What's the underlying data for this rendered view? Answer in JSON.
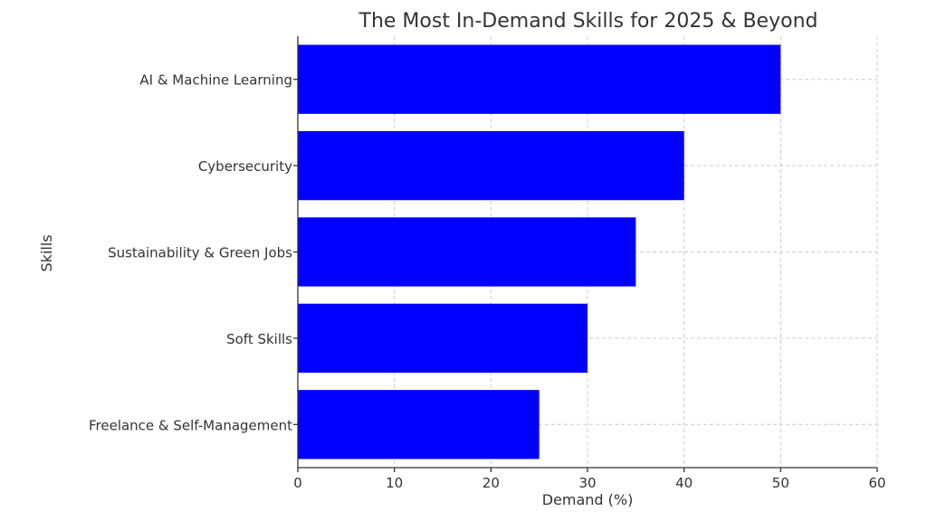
{
  "chart_data": {
    "type": "bar",
    "orientation": "horizontal",
    "title": "The Most In-Demand Skills for 2025 & Beyond",
    "xlabel": "Demand (%)",
    "ylabel": "Skills",
    "categories": [
      "AI & Machine Learning",
      "Cybersecurity",
      "Sustainability & Green Jobs",
      "Soft Skills",
      "Freelance & Self-Management"
    ],
    "values": [
      50,
      40,
      35,
      30,
      25
    ],
    "xlim": [
      0,
      60
    ],
    "xticks": [
      0,
      10,
      20,
      30,
      40,
      50,
      60
    ],
    "grid": true,
    "bar_color": "#0000ff"
  }
}
